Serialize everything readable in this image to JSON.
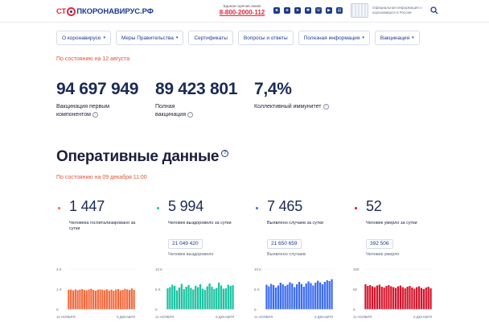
{
  "header": {
    "logo": {
      "part1": "СТ",
      "part2": "ПКОРОНАВИРУС.РФ"
    },
    "hotline_label": "Единая горячая линия",
    "hotline_number": "8-800-2000-112",
    "socials": [
      "vk-icon",
      "ok-icon",
      "telegram-icon",
      "odnoklassniki-icon",
      "viber-icon",
      "youtube-icon",
      "news-icon"
    ],
    "official_text": "Официальная информация о коронавирусе в России",
    "search_icon": "search-icon"
  },
  "nav": [
    {
      "label": "О коронавирусе",
      "dropdown": true
    },
    {
      "label": "Меры Правительства",
      "dropdown": true
    },
    {
      "label": "Сертификаты",
      "dropdown": false
    },
    {
      "label": "Вопросы и ответы",
      "dropdown": false
    },
    {
      "label": "Полезная информация",
      "dropdown": true
    },
    {
      "label": "Вакцинация",
      "dropdown": true
    }
  ],
  "vaccination": {
    "as_of": "По состоянию на 12 августа",
    "stats": [
      {
        "value": "94 697 949",
        "label": "Вакцинация первым компонентом"
      },
      {
        "value": "89 423 801",
        "label": "Полная вакцинация"
      },
      {
        "value": "7,4%",
        "label": "Коллективный иммунитет"
      }
    ]
  },
  "operative": {
    "title": "Оперативные данные",
    "as_of": "По состоянию на 09 декабря 11:00",
    "cards": [
      {
        "value": "1 447",
        "label": "Человека госпитализировано за сутки",
        "total": "",
        "total_label": "",
        "color": "#f4673a",
        "y_labels": [
          "3 K",
          "1 K",
          "0"
        ],
        "x_start": "10 НОЯБРЯ",
        "x_end": "9 ДЕКАБРЯ"
      },
      {
        "value": "5 994",
        "label": "Человек выздоровело за сутки",
        "total": "21 049 420",
        "total_label": "Человек выздоровело",
        "color": "#19c3a1",
        "y_labels": [
          "10 K",
          "5 K",
          "0"
        ],
        "x_start": "11 НОЯБРЯ",
        "x_end": "9 ДЕКАБРЯ"
      },
      {
        "value": "7 465",
        "label": "Выявлено случаев за сутки",
        "total": "21 650 659",
        "total_label": "Выявлено случаев",
        "color": "#3b6cf0",
        "y_labels": [
          "10 K",
          "5 K",
          "0"
        ],
        "x_start": "11 НОЯБРЯ",
        "x_end": "9 ДЕКАБРЯ"
      },
      {
        "value": "52",
        "label": "Человек умерло за сутки",
        "total": "392 506",
        "total_label": "Человек умерло",
        "color": "#d5142b",
        "y_labels": [
          "100",
          "50",
          "0"
        ],
        "x_start": "11 НОЯБРЯ",
        "x_end": "9 ДЕКАБРЯ"
      }
    ]
  },
  "chart_data": [
    {
      "type": "bar",
      "title": "",
      "ylim": [
        0,
        3000
      ],
      "values": [
        1450,
        1470,
        1400,
        1480,
        1420,
        1460,
        1500,
        1430,
        1410,
        1470,
        1520,
        1440,
        1390,
        1460,
        1480,
        1450,
        1420,
        1490,
        1400,
        1460,
        1380,
        1470,
        1500,
        1410,
        1440,
        1520,
        1480,
        1430,
        1550,
        1447
      ]
    },
    {
      "type": "bar",
      "title": "",
      "ylim": [
        0,
        10000
      ],
      "values": [
        5200,
        5500,
        6100,
        5800,
        4700,
        5400,
        6300,
        5000,
        5600,
        6000,
        5300,
        4900,
        5800,
        5500,
        6200,
        5100,
        4800,
        5700,
        6400,
        5600,
        5000,
        5300,
        6600,
        5900,
        5100,
        5200,
        6100,
        5800,
        5994
      ]
    },
    {
      "type": "bar",
      "title": "",
      "ylim": [
        0,
        10000
      ],
      "values": [
        6100,
        5700,
        6300,
        6000,
        5400,
        5900,
        6600,
        6200,
        5800,
        6100,
        6700,
        6400,
        5500,
        6200,
        6800,
        6300,
        5600,
        6400,
        6900,
        6500,
        5900,
        6600,
        7100,
        6700,
        6200,
        6800,
        7200,
        7000,
        7465
      ]
    },
    {
      "type": "bar",
      "title": "",
      "ylim": [
        0,
        100
      ],
      "values": [
        62,
        58,
        60,
        57,
        55,
        59,
        61,
        56,
        54,
        58,
        60,
        57,
        55,
        53,
        57,
        59,
        55,
        52,
        56,
        58,
        54,
        51,
        55,
        57,
        53,
        50,
        54,
        56,
        52
      ]
    }
  ]
}
